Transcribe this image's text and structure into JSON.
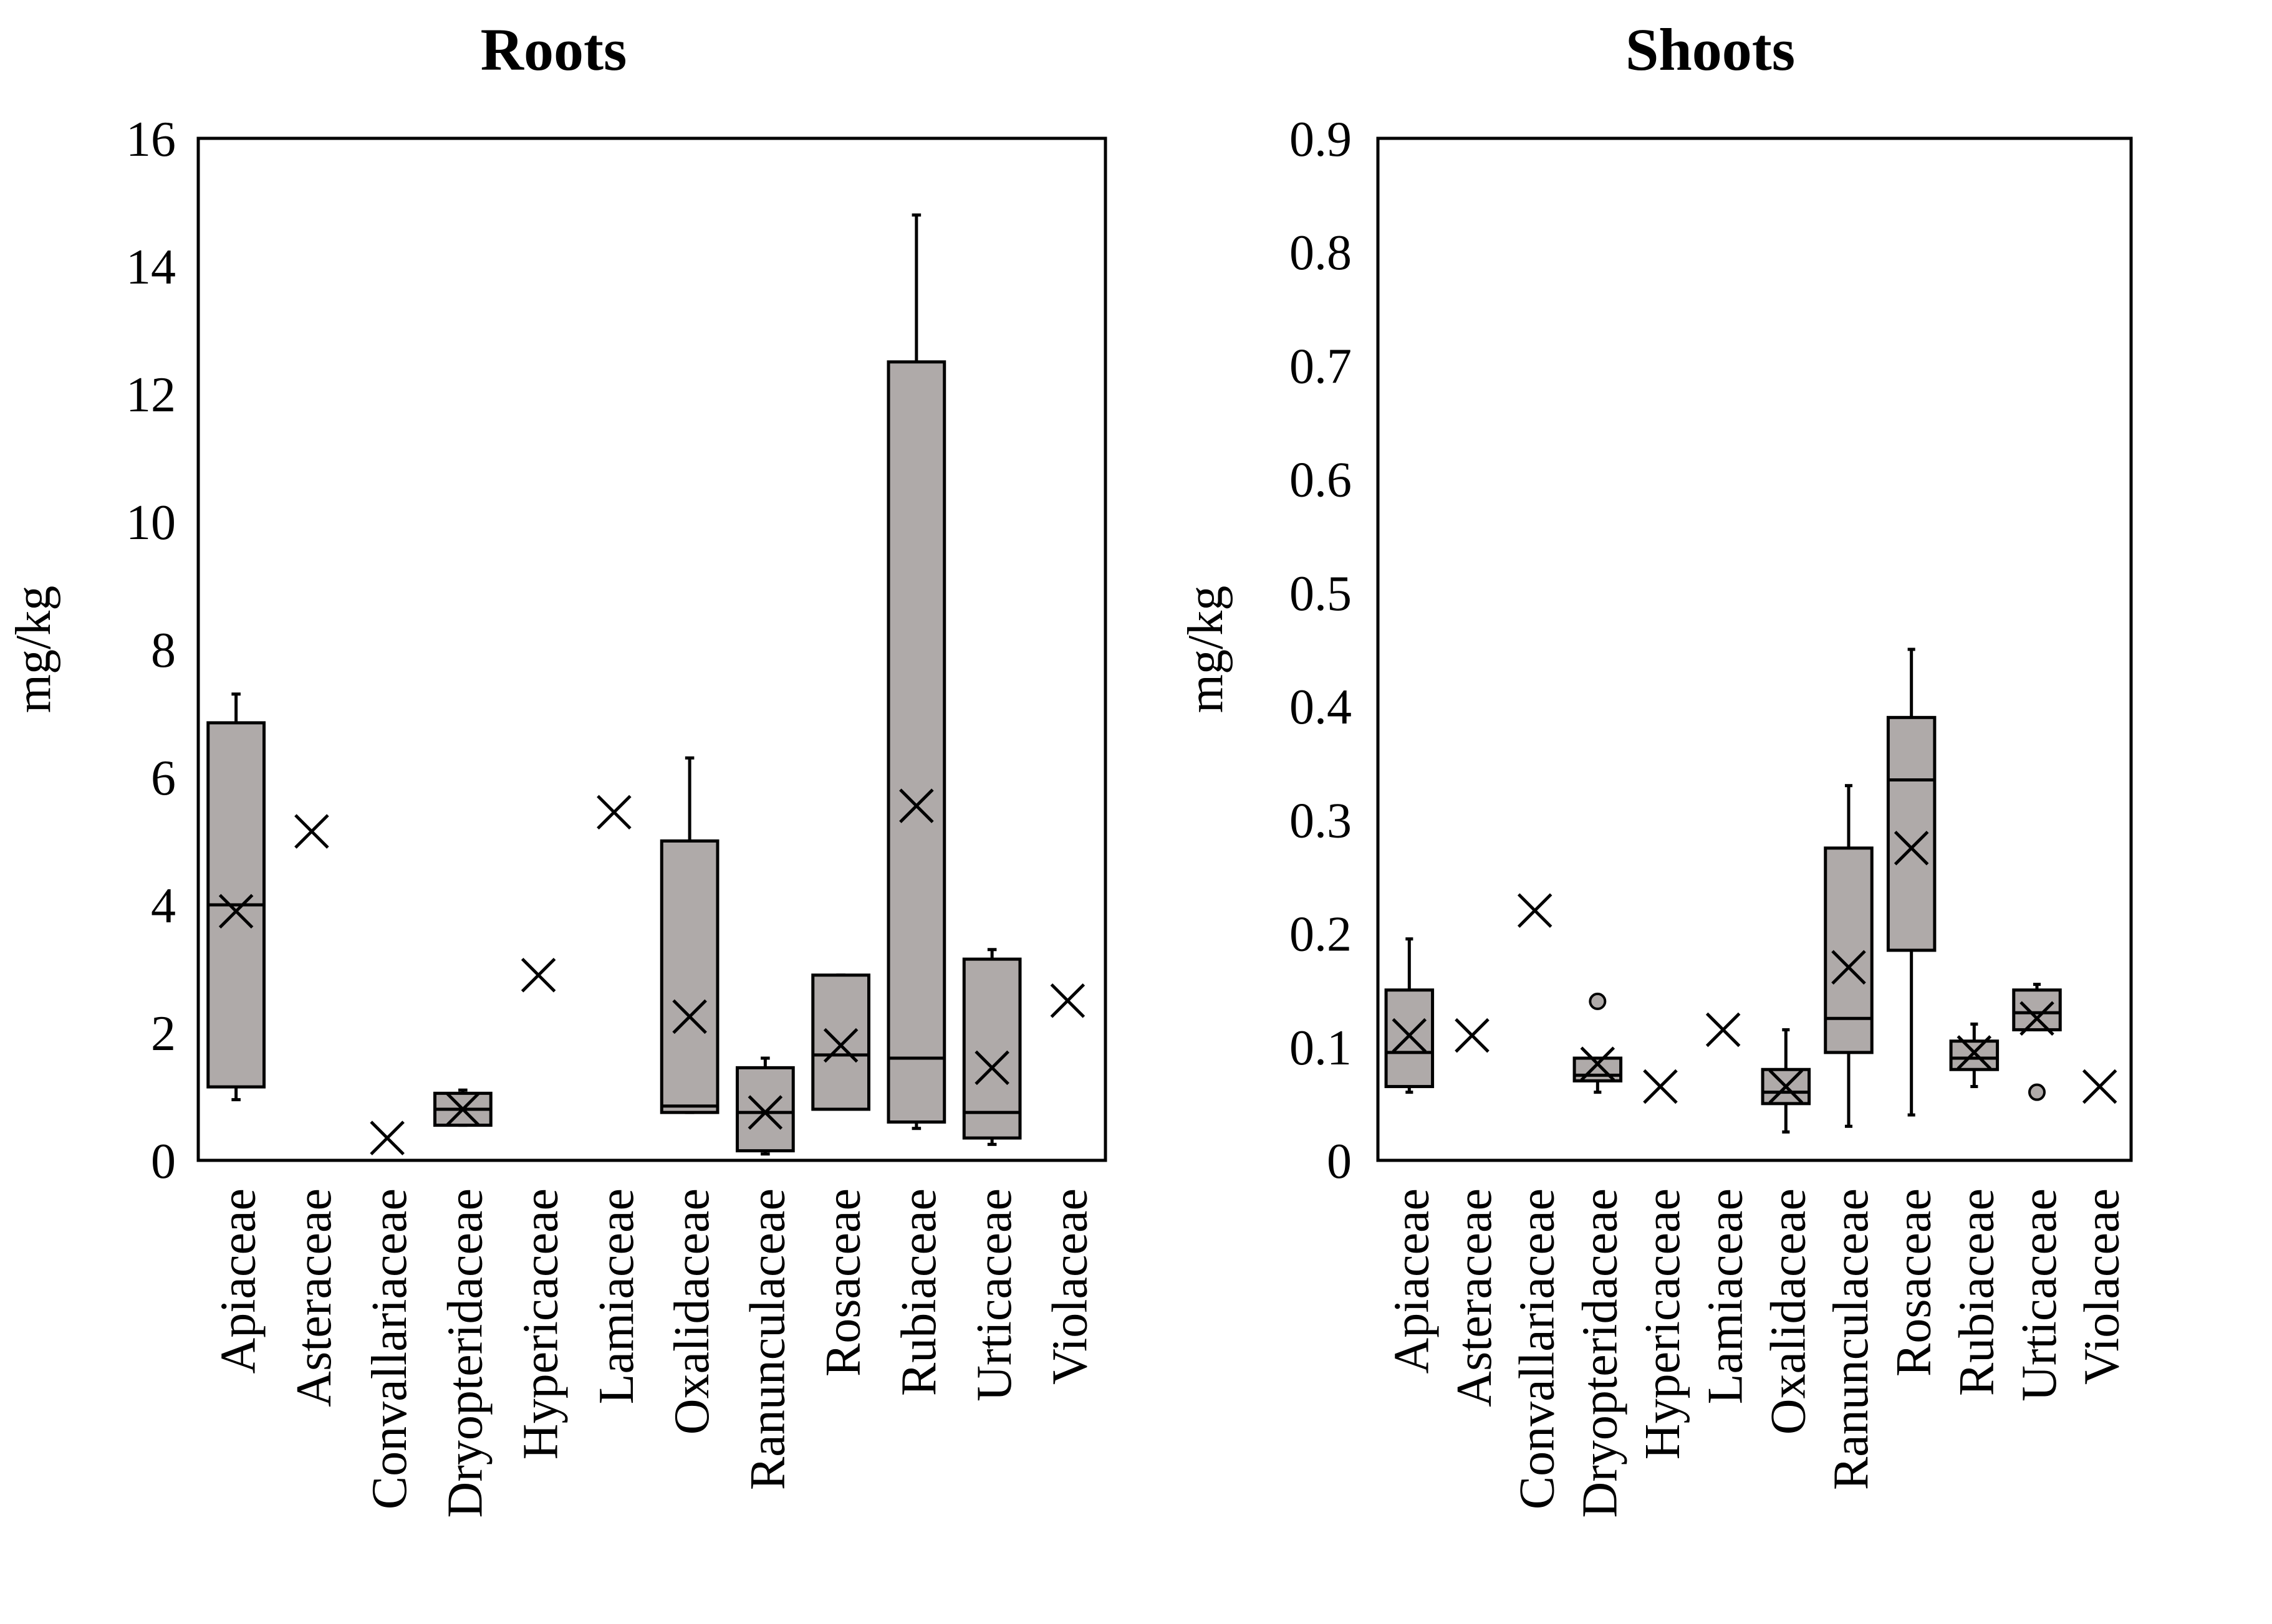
{
  "chart_data": [
    {
      "type": "box",
      "title": "Roots",
      "ylabel": "mg/kg",
      "xlabel": "",
      "ylim": [
        0,
        16
      ],
      "yticks": [
        0,
        2,
        4,
        6,
        8,
        10,
        12,
        14,
        16
      ],
      "ytick_labels": [
        "0",
        "2",
        "4",
        "6",
        "8",
        "10",
        "12",
        "14",
        "16"
      ],
      "categories": [
        "Apiaceae",
        "Asteraceae",
        "Convallariaceae",
        "Dryopteridaceae",
        "Hypericaceae",
        "Lamiaceae",
        "Oxalidaceae",
        "Ranunculaceae",
        "Rosaceae",
        "Rubiaceae",
        "Urticaceae",
        "Violaceae"
      ],
      "boxes": [
        {
          "category": "Apiaceae",
          "min": 0.95,
          "q1": 1.15,
          "median": 4.0,
          "q3": 6.85,
          "max": 7.3,
          "mean": 3.9,
          "outliers": []
        },
        {
          "category": "Asteraceae",
          "mean": 5.15
        },
        {
          "category": "Convallariaceae",
          "mean": 0.35
        },
        {
          "category": "Dryopteridaceae",
          "min": 0.55,
          "q1": 0.55,
          "median": 0.8,
          "q3": 1.05,
          "max": 1.1,
          "mean": 0.8,
          "outliers": []
        },
        {
          "category": "Hypericaceae",
          "mean": 2.9
        },
        {
          "category": "Lamiaceae",
          "mean": 5.45
        },
        {
          "category": "Oxalidaceae",
          "min": 0.75,
          "q1": 0.75,
          "median": 0.85,
          "q3": 5.0,
          "max": 6.3,
          "mean": 2.25,
          "outliers": []
        },
        {
          "category": "Ranunculaceae",
          "min": 0.1,
          "q1": 0.15,
          "median": 0.75,
          "q3": 1.45,
          "max": 1.6,
          "mean": 0.75,
          "outliers": []
        },
        {
          "category": "Rosaceae",
          "min": 0.8,
          "q1": 0.8,
          "median": 1.65,
          "q3": 2.9,
          "max": 2.9,
          "mean": 1.8,
          "outliers": []
        },
        {
          "category": "Rubiaceae",
          "min": 0.5,
          "q1": 0.6,
          "median": 1.6,
          "q3": 12.5,
          "max": 14.8,
          "mean": 5.55,
          "outliers": []
        },
        {
          "category": "Urticaceae",
          "min": 0.25,
          "q1": 0.35,
          "median": 0.75,
          "q3": 3.15,
          "max": 3.3,
          "mean": 1.45,
          "outliers": []
        },
        {
          "category": "Violaceae",
          "mean": 2.5
        }
      ]
    },
    {
      "type": "box",
      "title": "Shoots",
      "ylabel": "mg/kg",
      "xlabel": "",
      "ylim": [
        0,
        0.9
      ],
      "yticks": [
        0,
        0.1,
        0.2,
        0.3,
        0.4,
        0.5,
        0.6,
        0.7,
        0.8,
        0.9
      ],
      "ytick_labels": [
        "0",
        "0.1",
        "0.2",
        "0.3",
        "0.4",
        "0.5",
        "0.6",
        "0.7",
        "0.8",
        "0.9"
      ],
      "categories": [
        "Apiaceae",
        "Asteraceae",
        "Convallariaceae",
        "Dryopteridaceae",
        "Hypericaceae",
        "Lamiaceae",
        "Oxalidaceae",
        "Ranunculaceae",
        "Rosaceae",
        "Rubiaceae",
        "Urticaceae",
        "Violaceae"
      ],
      "boxes": [
        {
          "category": "Apiaceae",
          "min": 0.06,
          "q1": 0.065,
          "median": 0.095,
          "q3": 0.15,
          "max": 0.195,
          "mean": 0.11,
          "outliers": []
        },
        {
          "category": "Asteraceae",
          "mean": 0.11
        },
        {
          "category": "Convallariaceae",
          "mean": 0.22
        },
        {
          "category": "Dryopteridaceae",
          "min": 0.06,
          "q1": 0.07,
          "median": 0.075,
          "q3": 0.09,
          "max": 0.09,
          "mean": 0.085,
          "outliers": [
            0.14
          ]
        },
        {
          "category": "Hypericaceae",
          "mean": 0.065
        },
        {
          "category": "Lamiaceae",
          "mean": 0.115
        },
        {
          "category": "Oxalidaceae",
          "min": 0.025,
          "q1": 0.05,
          "median": 0.06,
          "q3": 0.08,
          "max": 0.115,
          "mean": 0.065,
          "outliers": []
        },
        {
          "category": "Ranunculaceae",
          "min": 0.03,
          "q1": 0.095,
          "median": 0.125,
          "q3": 0.275,
          "max": 0.33,
          "mean": 0.17,
          "outliers": []
        },
        {
          "category": "Rosaceae",
          "min": 0.04,
          "q1": 0.185,
          "median": 0.335,
          "q3": 0.39,
          "max": 0.45,
          "mean": 0.275,
          "outliers": []
        },
        {
          "category": "Rubiaceae",
          "min": 0.065,
          "q1": 0.08,
          "median": 0.09,
          "q3": 0.105,
          "max": 0.12,
          "mean": 0.095,
          "outliers": []
        },
        {
          "category": "Urticaceae",
          "min": 0.115,
          "q1": 0.115,
          "median": 0.13,
          "q3": 0.15,
          "max": 0.155,
          "mean": 0.125,
          "outliers": [
            0.06
          ]
        },
        {
          "category": "Violaceae",
          "mean": 0.065
        }
      ]
    }
  ]
}
